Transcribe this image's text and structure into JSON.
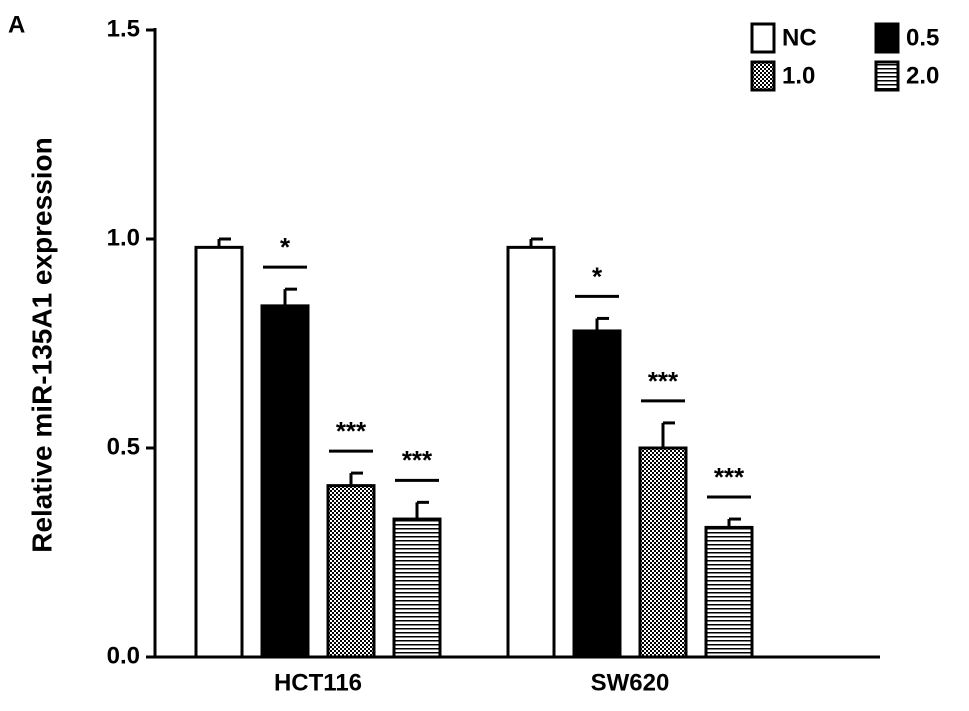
{
  "panel_label": "A",
  "chart_data": {
    "type": "bar",
    "y_label": "Relative miR-135A1 expression",
    "categories": [
      "HCT116",
      "SW620"
    ],
    "series": [
      {
        "name": "NC",
        "color": "#ffffff",
        "pattern": "solid",
        "values": [
          0.98,
          0.98
        ],
        "errors": [
          0.02,
          0.02
        ]
      },
      {
        "name": "0.5",
        "color": "#000000",
        "pattern": "solid",
        "values": [
          0.84,
          0.78
        ],
        "errors": [
          0.04,
          0.03
        ],
        "significance": [
          "*",
          "*"
        ]
      },
      {
        "name": "1.0",
        "color": "#000000",
        "pattern": "checker",
        "values": [
          0.41,
          0.5
        ],
        "errors": [
          0.03,
          0.06
        ],
        "significance": [
          "***",
          "***"
        ]
      },
      {
        "name": "2.0",
        "color": "#000000",
        "pattern": "horizontal-lines",
        "values": [
          0.33,
          0.31
        ],
        "errors": [
          0.04,
          0.02
        ],
        "significance": [
          "***",
          "***"
        ]
      }
    ],
    "ylim": [
      0,
      1.5
    ],
    "yticks": [
      {
        "value": 0,
        "label": "0.0"
      },
      0.5,
      {
        "value": 1,
        "label": "1.0"
      },
      1.5
    ],
    "legend": "top-right"
  }
}
